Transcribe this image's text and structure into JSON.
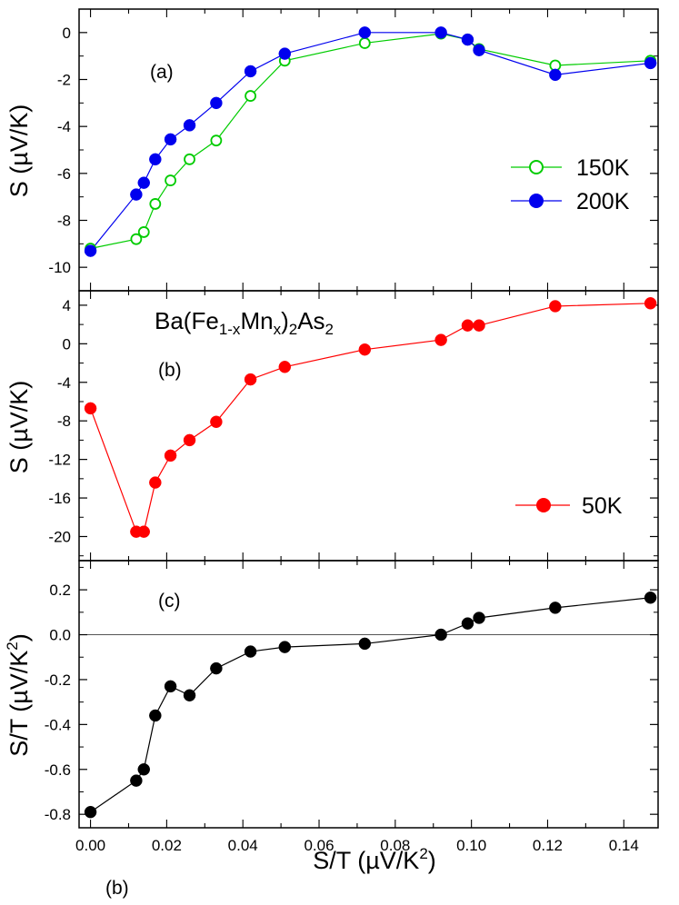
{
  "chart_data": [
    {
      "type": "line",
      "panel_label": "(a)",
      "ylabel": "S (µV/K)",
      "ylim": [
        -11,
        1
      ],
      "y_ticks": [
        0,
        -2,
        -4,
        -6,
        -8,
        -10
      ],
      "y_tick_labels": [
        "0",
        "-2",
        "-4",
        "-6",
        "-8",
        "-10"
      ],
      "xlim": [
        -0.003,
        0.149
      ],
      "legend_position": "right",
      "series": [
        {
          "name": "150K",
          "color": "#00cc00",
          "marker": "open-circle",
          "x": [
            0,
            0.012,
            0.014,
            0.017,
            0.021,
            0.026,
            0.033,
            0.042,
            0.051,
            0.072,
            0.092,
            0.099,
            0.102,
            0.122,
            0.147
          ],
          "y": [
            -9.2,
            -8.8,
            -8.5,
            -7.3,
            -6.3,
            -5.4,
            -4.6,
            -2.7,
            -1.2,
            -0.45,
            -0.05,
            -0.3,
            -0.7,
            -1.4,
            -1.2
          ]
        },
        {
          "name": "200K",
          "color": "#0000ee",
          "marker": "filled-circle",
          "x": [
            0,
            0.012,
            0.014,
            0.017,
            0.021,
            0.026,
            0.033,
            0.042,
            0.051,
            0.072,
            0.092,
            0.099,
            0.102,
            0.122,
            0.147
          ],
          "y": [
            -9.3,
            -6.9,
            -6.4,
            -5.4,
            -4.55,
            -3.95,
            -3.0,
            -1.65,
            -0.9,
            0.0,
            0.0,
            -0.3,
            -0.75,
            -1.8,
            -1.3
          ]
        }
      ]
    },
    {
      "type": "line",
      "panel_label": "(b)",
      "annotation": "Ba(Fe1-xMnx)2As2",
      "annotation_parts": {
        "a": "Ba(Fe",
        "b": "1-x",
        "c": "Mn",
        "d": "x",
        "e": ")",
        "f": "2",
        "g": "As",
        "h": "2"
      },
      "ylabel": "S (µV/K)",
      "ylim": [
        -22.5,
        5.5
      ],
      "y_ticks": [
        4,
        0,
        -4,
        -8,
        -12,
        -16,
        -20
      ],
      "y_tick_labels": [
        "4",
        "0",
        "-4",
        "-8",
        "-12",
        "-16",
        "-20"
      ],
      "xlim": [
        -0.003,
        0.149
      ],
      "legend_position": "bottom-right",
      "series": [
        {
          "name": "50K",
          "color": "#ff0000",
          "marker": "filled-circle",
          "x": [
            0,
            0.012,
            0.014,
            0.017,
            0.021,
            0.026,
            0.033,
            0.042,
            0.051,
            0.072,
            0.092,
            0.099,
            0.102,
            0.122,
            0.147
          ],
          "y": [
            -6.7,
            -19.5,
            -19.5,
            -14.4,
            -11.6,
            -10.0,
            -8.1,
            -3.7,
            -2.4,
            -0.6,
            0.4,
            1.9,
            1.9,
            3.9,
            4.2
          ]
        }
      ]
    },
    {
      "type": "line",
      "panel_label": "(c)",
      "ylabel": "S/T (µV/K²)",
      "ylabel_parts": {
        "main": "S/T (µV/K",
        "sup": "2",
        "close": ")"
      },
      "ylim": [
        -0.86,
        0.33
      ],
      "y_ticks": [
        0.2,
        0.0,
        -0.2,
        -0.4,
        -0.6,
        -0.8
      ],
      "y_tick_labels": [
        "0.2",
        "0.0",
        "-0.2",
        "-0.4",
        "-0.6",
        "-0.8"
      ],
      "xlim": [
        -0.003,
        0.149
      ],
      "x_ticks": [
        0,
        0.02,
        0.04,
        0.06,
        0.08,
        0.1,
        0.12,
        0.14
      ],
      "x_tick_labels": [
        "0.00",
        "0.02",
        "0.04",
        "0.06",
        "0.08",
        "0.10",
        "0.12",
        "0.14"
      ],
      "xlabel": "S/T (µV/K²)",
      "xlabel_parts": {
        "main": "S/T (µV/K",
        "sup": "2",
        "close": ")"
      },
      "reference_line_y": 0,
      "series": [
        {
          "color": "#000000",
          "marker": "filled-circle",
          "x": [
            0,
            0.012,
            0.014,
            0.017,
            0.021,
            0.026,
            0.033,
            0.042,
            0.051,
            0.072,
            0.092,
            0.099,
            0.102,
            0.122,
            0.147
          ],
          "y": [
            -0.79,
            -0.65,
            -0.6,
            -0.36,
            -0.23,
            -0.27,
            -0.15,
            -0.075,
            -0.055,
            -0.04,
            0.0,
            0.05,
            0.075,
            0.12,
            0.165
          ]
        }
      ]
    }
  ],
  "figure_label": "(b)"
}
